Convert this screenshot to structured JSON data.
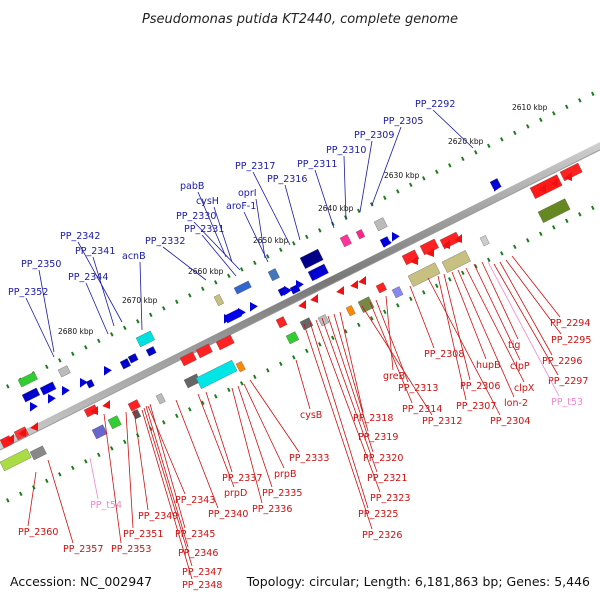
{
  "title": "Pseudomonas putida KT2440, complete genome",
  "footer": {
    "accession": "Accession: NC_002947",
    "summary": "Topology: circular; Length: 6,181,863 bp; Genes: 5,446"
  },
  "colors": {
    "forward_label": "#1a1aa8",
    "reverse_label": "#cc1111",
    "rna_label": "#ee88cc",
    "tick": "#1e7d1e"
  },
  "ticks": [
    "2610 kbp",
    "2620 kbp",
    "2630 kbp",
    "2640 kbp",
    "2650 kbp",
    "2660 kbp",
    "2670 kbp",
    "2680 kbp"
  ],
  "forward_labels": [
    "PP_2292",
    "PP_2305",
    "PP_2309",
    "PP_2310",
    "PP_2311",
    "PP_2317",
    "PP_2316",
    "pabB",
    "cysH",
    "oprI",
    "aroF-1",
    "PP_2330",
    "PP_2331",
    "PP_2332",
    "acnB",
    "PP_2342",
    "PP_2341",
    "PP_2344",
    "PP_2350",
    "PP_2352"
  ],
  "reverse_labels": [
    "PP_2294",
    "PP_2295",
    "PP_2296",
    "PP_2297",
    "tig",
    "clpP",
    "clpX",
    "lon-2",
    "hupB",
    "PP_2306",
    "PP_2307",
    "PP_2304",
    "PP_2308",
    "greB",
    "PP_2313",
    "PP_2314",
    "PP_2312",
    "PP_2318",
    "PP_2319",
    "PP_2320",
    "PP_2321",
    "PP_2323",
    "PP_2325",
    "PP_2326",
    "cysB",
    "PP_2333",
    "prpB",
    "PP_2335",
    "PP_2336",
    "PP_2337",
    "prpD",
    "PP_2340",
    "PP_2343",
    "PP_2349",
    "PP_2345",
    "PP_2346",
    "PP_2347",
    "PP_2348",
    "PP_2351",
    "PP_2353",
    "PP_2357",
    "PP_2360"
  ],
  "rna_labels": [
    "PP_t53",
    "PP_t54"
  ]
}
